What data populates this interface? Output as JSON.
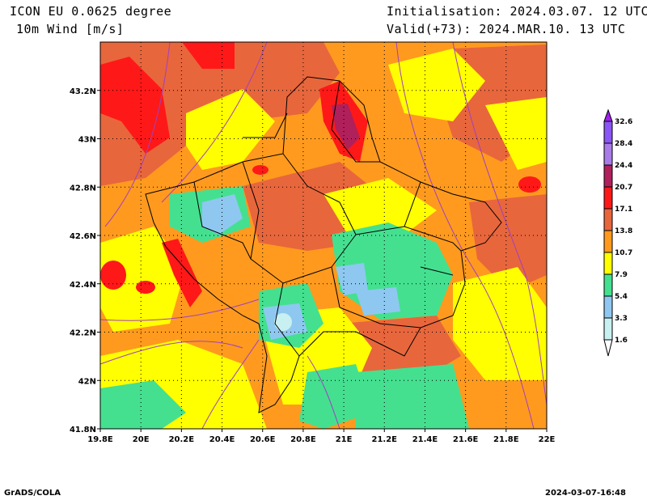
{
  "header": {
    "model": "ICON EU 0.0625 degree",
    "variable": "10m Wind [m/s]",
    "init": "Initialisation: 2024.03.07. 12 UTC",
    "valid": "Valid(+73): 2024.MAR.10. 13 UTC"
  },
  "footer": {
    "left": "GrADS/COLA",
    "right": "2024-03-07-16:48"
  },
  "map": {
    "lon_ticks": [
      "19.8E",
      "20E",
      "20.2E",
      "20.4E",
      "20.6E",
      "20.8E",
      "21E",
      "21.2E",
      "21.4E",
      "21.6E",
      "21.8E",
      "22E"
    ],
    "lat_ticks": [
      "43.2N",
      "43N",
      "42.8N",
      "42.6N",
      "42.4N",
      "42.2N",
      "42N",
      "41.8N"
    ],
    "lon_range": [
      19.8,
      22.0
    ],
    "lat_range": [
      41.8,
      43.4
    ]
  },
  "legend": {
    "levels": [
      "32.6",
      "28.4",
      "24.4",
      "20.7",
      "17.1",
      "13.8",
      "10.7",
      "7.9",
      "5.4",
      "3.3",
      "1.6"
    ],
    "colors": [
      "#a020f0",
      "#8a55f5",
      "#a97be8",
      "#b0205a",
      "#ff1818",
      "#e8663c",
      "#ff9a1e",
      "#ffff00",
      "#44e090",
      "#8ec8f0",
      "#c8f0f0",
      "#ffffff"
    ]
  }
}
